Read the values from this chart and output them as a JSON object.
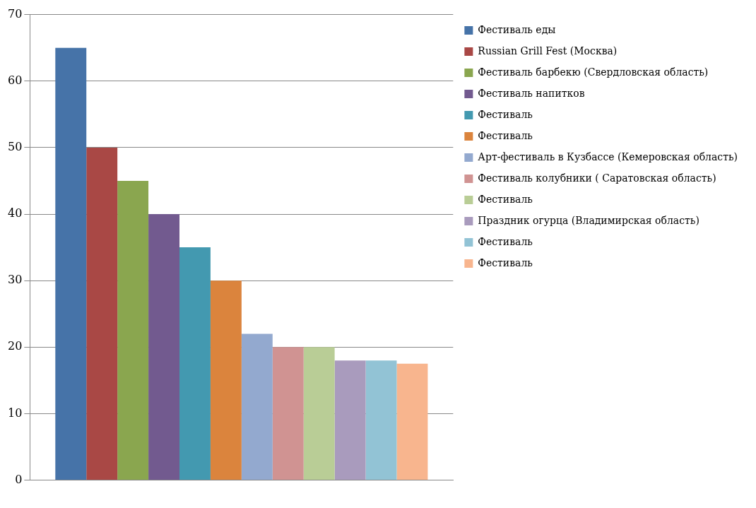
{
  "chart_data": {
    "type": "bar",
    "categories": [
      null
    ],
    "series": [
      {
        "name": "Фестиваль еды",
        "color": "#4673a8",
        "values": [
          65
        ]
      },
      {
        "name": "Russian Grill Fest (Москва)",
        "color": "#a94845",
        "values": [
          50
        ]
      },
      {
        "name": "Фестиваль барбекю (Свердловская область)",
        "color": "#8aa64f",
        "values": [
          45
        ]
      },
      {
        "name": "Фестиваль напитков",
        "color": "#725a8f",
        "values": [
          40
        ]
      },
      {
        "name": "Фестиваль",
        "color": "#4399b0",
        "values": [
          35
        ]
      },
      {
        "name": "Фестиваль",
        "color": "#db843d",
        "values": [
          30
        ]
      },
      {
        "name": "Арт-фестиваль в Кузбассе (Кемеровская область)",
        "color": "#93a9cf",
        "values": [
          22
        ]
      },
      {
        "name": "Фестиваль колубники ( Саратовская область)",
        "color": "#d09392",
        "values": [
          20
        ]
      },
      {
        "name": "Фестиваль",
        "color": "#b9cd96",
        "values": [
          20
        ]
      },
      {
        "name": "Праздник огурца (Владимирская область)",
        "color": "#a99bbd",
        "values": [
          18
        ]
      },
      {
        "name": "Фестиваль",
        "color": "#92c3d5",
        "values": [
          18
        ]
      },
      {
        "name": "Фестиваль",
        "color": "#f8b58e",
        "values": [
          17.5
        ]
      }
    ],
    "ylim": [
      0,
      70
    ],
    "yticks": [
      0,
      10,
      20,
      30,
      40,
      50,
      60,
      70
    ],
    "grid": "y",
    "legend": "right"
  }
}
